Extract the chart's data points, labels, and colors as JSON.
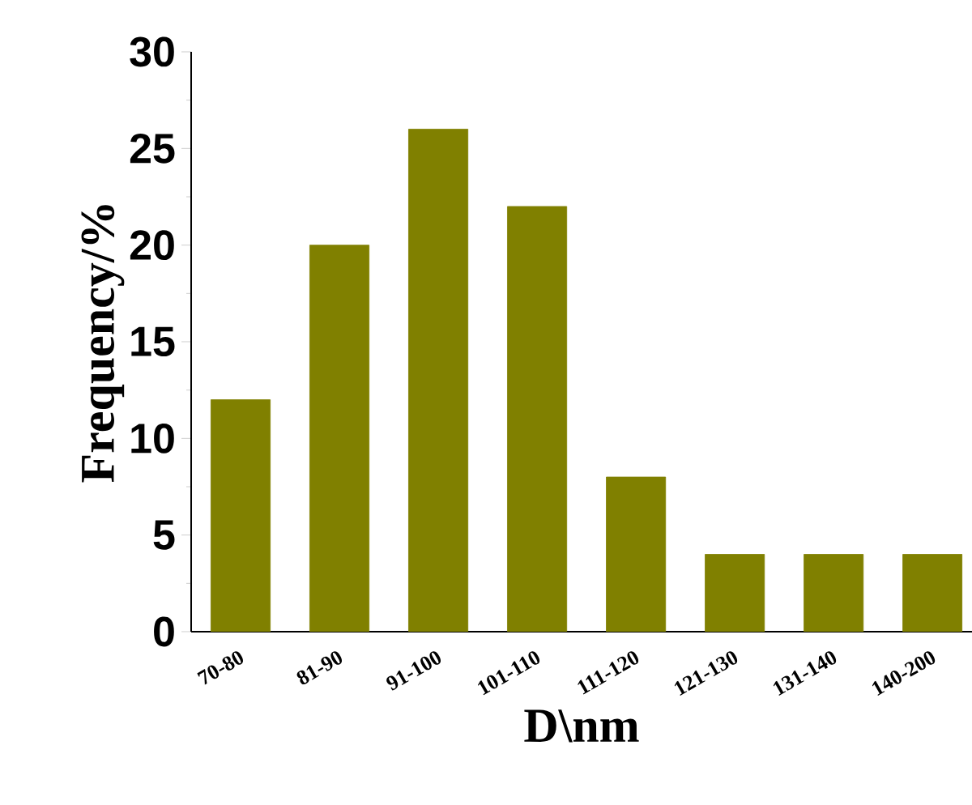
{
  "chart_data": {
    "type": "bar",
    "xlabel": "D\\nm",
    "ylabel": "Frequency/%",
    "categories": [
      "70-80",
      "81-90",
      "91-100",
      "101-110",
      "111-120",
      "121-130",
      "131-140",
      "140-200"
    ],
    "values": [
      12,
      20,
      26,
      22,
      8,
      4,
      4,
      4
    ],
    "color": "#808000",
    "ylim": [
      0,
      30
    ],
    "yticks": [
      0,
      5,
      10,
      15,
      20,
      25,
      30
    ],
    "grid": false
  }
}
